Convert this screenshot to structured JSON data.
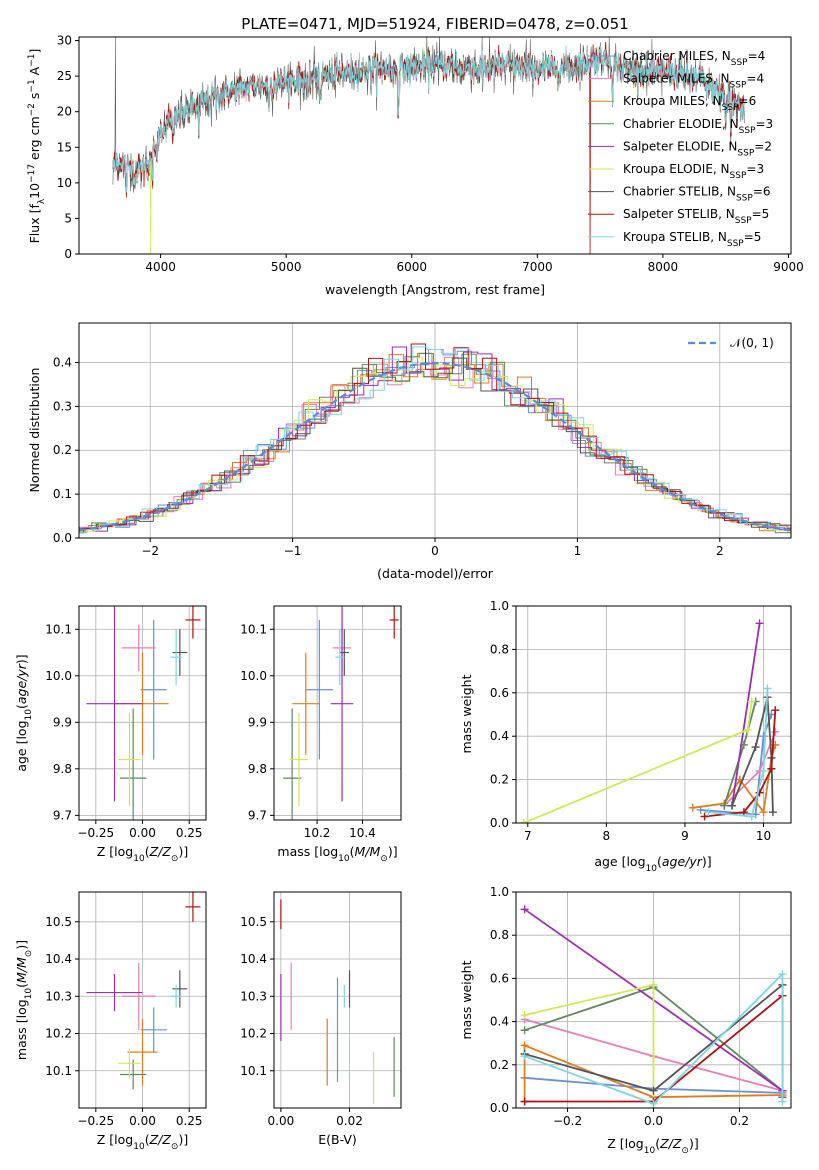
{
  "colors": {
    "Chabrier MILES": "#6a8ed8",
    "Salpeter MILES": "#e87eb8",
    "Kroupa MILES": "#e07b1f",
    "Chabrier ELODIE": "#5e8a5e",
    "Salpeter ELODIE": "#9a2fb0",
    "Kroupa ELODIE": "#cfe85a",
    "Chabrier STELIB": "#555555",
    "Salpeter STELIB": "#b01212",
    "Kroupa STELIB": "#7fd6e0",
    "normal": "#5b8ad6",
    "grid": "#b0b0b0"
  },
  "chart_data": [
    {
      "id": "spectrum",
      "type": "line",
      "title": "PLATE=0471, MJD=51924, FIBERID=0478, z=0.051",
      "xlabel": "wavelength [Angstrom, rest frame]",
      "ylabel": "Flux [f",
      "ylabel_full": "Flux [fλ10⁻¹⁷ erg cm⁻² s⁻¹ A⁻¹]",
      "xlim": [
        3350,
        9020
      ],
      "ylim": [
        0,
        30.5
      ],
      "xticks": [
        4000,
        5000,
        6000,
        7000,
        8000,
        9000
      ],
      "yticks": [
        0,
        5,
        10,
        15,
        20,
        25,
        30
      ],
      "legend_position": "top-right",
      "legend": [
        {
          "label": "Chabrier MILES, N",
          "sub": "SSP",
          "tail": "=4",
          "key": "Chabrier MILES"
        },
        {
          "label": "Salpeter MILES, N",
          "sub": "SSP",
          "tail": "=4",
          "key": "Salpeter MILES"
        },
        {
          "label": "Kroupa MILES, N",
          "sub": "SSP",
          "tail": "=6",
          "key": "Kroupa MILES"
        },
        {
          "label": "Chabrier ELODIE, N",
          "sub": "SSP",
          "tail": "=3",
          "key": "Chabrier ELODIE"
        },
        {
          "label": "Salpeter ELODIE, N",
          "sub": "SSP",
          "tail": "=2",
          "key": "Salpeter ELODIE"
        },
        {
          "label": "Kroupa ELODIE, N",
          "sub": "SSP",
          "tail": "=3",
          "key": "Kroupa ELODIE"
        },
        {
          "label": "Chabrier STELIB, N",
          "sub": "SSP",
          "tail": "=6",
          "key": "Chabrier STELIB"
        },
        {
          "label": "Salpeter STELIB, N",
          "sub": "SSP",
          "tail": "=5",
          "key": "Salpeter STELIB"
        },
        {
          "label": "Kroupa STELIB, N",
          "sub": "SSP",
          "tail": "=5",
          "key": "Kroupa STELIB"
        }
      ],
      "continuum": {
        "wavelength": [
          3620,
          3700,
          3800,
          3900,
          4000,
          4100,
          4200,
          4300,
          4400,
          4500,
          4700,
          4900,
          5100,
          5300,
          5500,
          5700,
          5900,
          6100,
          6300,
          6500,
          6700,
          6900,
          7100,
          7300,
          7500,
          7700,
          7900,
          8100,
          8300,
          8500,
          8650
        ],
        "flux": [
          12.5,
          13.0,
          11.5,
          13.0,
          17.5,
          19.0,
          20.0,
          21.0,
          22.0,
          22.5,
          23.5,
          24.0,
          24.5,
          25.0,
          25.5,
          26.0,
          26.0,
          26.5,
          26.5,
          26.0,
          26.5,
          26.0,
          26.0,
          26.5,
          27.5,
          26.0,
          25.5,
          25.5,
          24.5,
          22.0,
          20.5
        ]
      },
      "features": [
        {
          "wavelength": 3727,
          "depth": 3.5
        },
        {
          "wavelength": 3934,
          "depth": 5
        },
        {
          "wavelength": 3969,
          "depth": 4
        },
        {
          "wavelength": 4102,
          "depth": 3
        },
        {
          "wavelength": 4304,
          "depth": 4
        },
        {
          "wavelength": 4861,
          "depth": 3
        },
        {
          "wavelength": 5175,
          "depth": 4
        },
        {
          "wavelength": 5270,
          "depth": 3
        },
        {
          "wavelength": 5893,
          "depth": 6
        },
        {
          "wavelength": 6563,
          "depth": 2
        },
        {
          "wavelength": 7600,
          "depth": 3
        },
        {
          "wavelength": 8500,
          "depth": 4
        },
        {
          "wavelength": 8542,
          "depth": 5
        },
        {
          "wavelength": 8662,
          "depth": 4
        }
      ],
      "spikes": [
        {
          "wavelength": 3640,
          "flux": 30.5
        },
        {
          "wavelength": 6560,
          "flux": 30.5
        },
        {
          "wavelength": 6620,
          "flux": 30.5
        }
      ],
      "dropouts": [
        {
          "series": "Kroupa ELODIE",
          "wavelength": 3920
        },
        {
          "series": "Kroupa ELODIE",
          "wavelength": 6800
        },
        {
          "series": "Salpeter STELIB",
          "wavelength": 7420
        }
      ]
    },
    {
      "id": "residuals",
      "type": "bar",
      "xlabel": "(data-model)/error",
      "ylabel": "Normed distribution",
      "xlim": [
        -2.5,
        2.5
      ],
      "ylim": [
        0,
        0.49
      ],
      "xticks": [
        -2,
        -1,
        0,
        1,
        2
      ],
      "yticks": [
        0.0,
        0.1,
        0.2,
        0.3,
        0.4
      ],
      "legend_position": "top-right",
      "legend_label": "𝒩(0, 1)",
      "bin_width": 0.1,
      "normal": {
        "mean": 0,
        "sigma": 1
      }
    },
    {
      "id": "age-Z",
      "type": "scatter",
      "xlabel": "Z [log",
      "xlabel_full": "Z [log10(Z/Z⊙)]",
      "ylabel_full": "age [log10(age/yr)]",
      "xlim": [
        -0.34,
        0.34
      ],
      "ylim": [
        9.69,
        10.15
      ],
      "xticks": [
        -0.25,
        0.0,
        0.25
      ],
      "yticks": [
        9.7,
        9.8,
        9.9,
        10.0,
        10.1
      ],
      "points": [
        {
          "series": "Chabrier MILES",
          "x": 0.06,
          "y": 9.97,
          "xerr": 0.07,
          "yerr": 0.15
        },
        {
          "series": "Salpeter MILES",
          "x": -0.02,
          "y": 10.06,
          "xerr": 0.09,
          "yerr": 0.05
        },
        {
          "series": "Kroupa MILES",
          "x": 0.0,
          "y": 9.94,
          "xerr": 0.14,
          "yerr": 0.11
        },
        {
          "series": "Chabrier ELODIE",
          "x": -0.05,
          "y": 9.78,
          "xerr": 0.07,
          "yerr": 0.15
        },
        {
          "series": "Salpeter ELODIE",
          "x": -0.15,
          "y": 9.94,
          "xerr": 0.15,
          "yerr": 0.21
        },
        {
          "series": "Kroupa ELODIE",
          "x": -0.07,
          "y": 9.82,
          "xerr": 0.06,
          "yerr": 0.1
        },
        {
          "series": "Chabrier STELIB",
          "x": 0.2,
          "y": 10.05,
          "xerr": 0.04,
          "yerr": 0.05
        },
        {
          "series": "Salpeter STELIB",
          "x": 0.27,
          "y": 10.12,
          "xerr": 0.04,
          "yerr": 0.04
        },
        {
          "series": "Kroupa STELIB",
          "x": 0.18,
          "y": 10.04,
          "xerr": 0.03,
          "yerr": 0.06
        }
      ]
    },
    {
      "id": "age-mass",
      "type": "scatter",
      "xlabel_full": "mass [log10(M/M⊙)]",
      "xlim": [
        10.01,
        10.57
      ],
      "ylim": [
        9.69,
        10.15
      ],
      "xticks": [
        10.2,
        10.4
      ],
      "yticks": [
        9.7,
        9.8,
        9.9,
        10.0,
        10.1
      ],
      "points": [
        {
          "series": "Chabrier MILES",
          "x": 10.21,
          "y": 9.97,
          "xerr": 0.06,
          "yerr": 0.15
        },
        {
          "series": "Salpeter MILES",
          "x": 10.31,
          "y": 10.06,
          "xerr": 0.04,
          "yerr": 0.05
        },
        {
          "series": "Kroupa MILES",
          "x": 10.15,
          "y": 9.94,
          "xerr": 0.06,
          "yerr": 0.11
        },
        {
          "series": "Chabrier ELODIE",
          "x": 10.09,
          "y": 9.78,
          "xerr": 0.04,
          "yerr": 0.15
        },
        {
          "series": "Salpeter ELODIE",
          "x": 10.31,
          "y": 9.94,
          "xerr": 0.05,
          "yerr": 0.21
        },
        {
          "series": "Kroupa ELODIE",
          "x": 10.12,
          "y": 9.82,
          "xerr": 0.04,
          "yerr": 0.1
        },
        {
          "series": "Chabrier STELIB",
          "x": 10.32,
          "y": 10.05,
          "xerr": 0.02,
          "yerr": 0.05
        },
        {
          "series": "Salpeter STELIB",
          "x": 10.54,
          "y": 10.12,
          "xerr": 0.02,
          "yerr": 0.04
        },
        {
          "series": "Kroupa STELIB",
          "x": 10.3,
          "y": 10.04,
          "xerr": 0.02,
          "yerr": 0.06
        }
      ]
    },
    {
      "id": "massweight-age",
      "type": "line",
      "xlabel_full": "age [log10(age/yr)]",
      "ylabel": "mass weight",
      "xlim": [
        6.85,
        10.35
      ],
      "ylim": [
        0,
        1.0
      ],
      "xticks": [
        7,
        8,
        9,
        10
      ],
      "yticks": [
        0.0,
        0.2,
        0.4,
        0.6,
        0.8,
        1.0
      ],
      "series": [
        {
          "name": "Chabrier MILES",
          "x": [
            9.2,
            9.9,
            10.0,
            10.1
          ],
          "y": [
            0.06,
            0.04,
            0.4,
            0.5
          ]
        },
        {
          "name": "Salpeter MILES",
          "x": [
            9.5,
            9.95,
            10.15
          ],
          "y": [
            0.08,
            0.24,
            0.42
          ]
        },
        {
          "name": "Kroupa MILES",
          "x": [
            9.1,
            9.5,
            9.7,
            10.0,
            10.1,
            10.15
          ],
          "y": [
            0.07,
            0.09,
            0.2,
            0.05,
            0.3,
            0.36
          ]
        },
        {
          "name": "Chabrier ELODIE",
          "x": [
            9.5,
            9.75,
            9.9
          ],
          "y": [
            0.08,
            0.36,
            0.56
          ]
        },
        {
          "name": "Salpeter ELODIE",
          "x": [
            9.6,
            9.95
          ],
          "y": [
            0.08,
            0.92
          ]
        },
        {
          "name": "Kroupa ELODIE",
          "x": [
            6.95,
            9.8,
            9.85
          ],
          "y": [
            0.0,
            0.43,
            0.56
          ]
        },
        {
          "name": "Chabrier STELIB",
          "x": [
            9.6,
            9.9,
            10.05,
            10.1,
            10.12
          ],
          "y": [
            0.08,
            0.35,
            0.58,
            0.3,
            0.05
          ]
        },
        {
          "name": "Salpeter STELIB",
          "x": [
            9.25,
            9.75,
            9.95,
            10.1,
            10.15
          ],
          "y": [
            0.03,
            0.05,
            0.14,
            0.25,
            0.52
          ]
        },
        {
          "name": "Kroupa STELIB",
          "x": [
            9.3,
            9.85,
            10.0,
            10.05
          ],
          "y": [
            0.05,
            0.03,
            0.24,
            0.62
          ]
        }
      ]
    },
    {
      "id": "mass-Z",
      "type": "scatter",
      "xlabel_full": "Z [log10(Z/Z⊙)]",
      "ylabel_full": "mass [log10(M/M⊙)]",
      "xlim": [
        -0.34,
        0.34
      ],
      "ylim": [
        10.0,
        10.58
      ],
      "xticks": [
        -0.25,
        0.0,
        0.25
      ],
      "yticks": [
        10.1,
        10.2,
        10.3,
        10.4,
        10.5
      ],
      "points": [
        {
          "series": "Chabrier MILES",
          "x": 0.06,
          "y": 10.21,
          "xerr": 0.07,
          "yerr": 0.06
        },
        {
          "series": "Salpeter MILES",
          "x": -0.02,
          "y": 10.3,
          "xerr": 0.09,
          "yerr": 0.09
        },
        {
          "series": "Kroupa MILES",
          "x": 0.0,
          "y": 10.15,
          "xerr": 0.08,
          "yerr": 0.09
        },
        {
          "series": "Chabrier ELODIE",
          "x": -0.05,
          "y": 10.09,
          "xerr": 0.07,
          "yerr": 0.04
        },
        {
          "series": "Salpeter ELODIE",
          "x": -0.15,
          "y": 10.31,
          "xerr": 0.15,
          "yerr": 0.05
        },
        {
          "series": "Kroupa ELODIE",
          "x": -0.07,
          "y": 10.12,
          "xerr": 0.06,
          "yerr": 0.04
        },
        {
          "series": "Chabrier STELIB",
          "x": 0.2,
          "y": 10.32,
          "xerr": 0.04,
          "yerr": 0.05
        },
        {
          "series": "Salpeter STELIB",
          "x": 0.27,
          "y": 10.54,
          "xerr": 0.04,
          "yerr": 0.04
        },
        {
          "series": "Kroupa STELIB",
          "x": 0.18,
          "y": 10.3,
          "xerr": 0.03,
          "yerr": 0.03
        }
      ]
    },
    {
      "id": "mass-EBV",
      "type": "scatter",
      "xlabel": "E(B-V)",
      "xlim": [
        -0.002,
        0.035
      ],
      "ylim": [
        10.0,
        10.58
      ],
      "xticks": [
        0.0,
        0.02
      ],
      "yticks": [
        10.1,
        10.2,
        10.3,
        10.4,
        10.5
      ],
      "points": [
        {
          "series": "Chabrier MILES",
          "x": 0.0165,
          "y": 10.21,
          "yerr": 0.14
        },
        {
          "series": "Salpeter MILES",
          "x": 0.003,
          "y": 10.3,
          "yerr": 0.09
        },
        {
          "series": "Kroupa MILES",
          "x": 0.0135,
          "y": 10.15,
          "yerr": 0.09
        },
        {
          "series": "Chabrier ELODIE",
          "x": 0.033,
          "y": 10.11,
          "yerr": 0.08
        },
        {
          "series": "Salpeter ELODIE",
          "x": 0.0,
          "y": 10.27,
          "yerr": 0.09
        },
        {
          "series": "Kroupa ELODIE",
          "x": 0.027,
          "y": 10.08,
          "yerr": 0.07
        },
        {
          "series": "Chabrier STELIB",
          "x": 0.02,
          "y": 10.32,
          "yerr": 0.05
        },
        {
          "series": "Salpeter STELIB",
          "x": 0.0,
          "y": 10.52,
          "yerr": 0.04
        },
        {
          "series": "Kroupa STELIB",
          "x": 0.0185,
          "y": 10.3,
          "yerr": 0.03
        }
      ]
    },
    {
      "id": "massweight-Z",
      "type": "line",
      "xlabel_full": "Z [log10(Z/Z⊙)]",
      "ylabel": "mass weight",
      "xlim": [
        -0.32,
        0.32
      ],
      "ylim": [
        0,
        1.0
      ],
      "xticks": [
        -0.2,
        0.0,
        0.2
      ],
      "yticks": [
        0.0,
        0.2,
        0.4,
        0.6,
        0.8,
        1.0
      ],
      "series": [
        {
          "name": "Chabrier MILES",
          "x": [
            -0.3,
            0.0,
            0.3
          ],
          "y": [
            0.14,
            0.09,
            0.07
          ]
        },
        {
          "name": "Salpeter MILES",
          "x": [
            -0.3,
            0.0,
            0.3
          ],
          "y": [
            0.41,
            0.24,
            0.08
          ]
        },
        {
          "name": "Kroupa MILES",
          "x": [
            -0.3,
            -0.3,
            0.0,
            0.3
          ],
          "y": [
            0.03,
            0.29,
            0.05,
            0.06
          ]
        },
        {
          "name": "Chabrier ELODIE",
          "x": [
            -0.3,
            0.0,
            0.3
          ],
          "y": [
            0.36,
            0.56,
            0.08
          ]
        },
        {
          "name": "Salpeter ELODIE",
          "x": [
            -0.3,
            0.3
          ],
          "y": [
            0.92,
            0.08
          ]
        },
        {
          "name": "Kroupa ELODIE",
          "x": [
            -0.3,
            0.0,
            0.0
          ],
          "y": [
            0.43,
            0.57,
            0.0
          ]
        },
        {
          "name": "Chabrier STELIB",
          "x": [
            -0.3,
            0.0,
            0.3,
            0.3
          ],
          "y": [
            0.25,
            0.08,
            0.57,
            0.05
          ]
        },
        {
          "name": "Salpeter STELIB",
          "x": [
            -0.3,
            0.0,
            0.3
          ],
          "y": [
            0.03,
            0.03,
            0.52
          ]
        },
        {
          "name": "Kroupa STELIB",
          "x": [
            -0.3,
            0.0,
            0.3,
            0.3
          ],
          "y": [
            0.24,
            0.02,
            0.62,
            0.03
          ]
        }
      ]
    }
  ]
}
